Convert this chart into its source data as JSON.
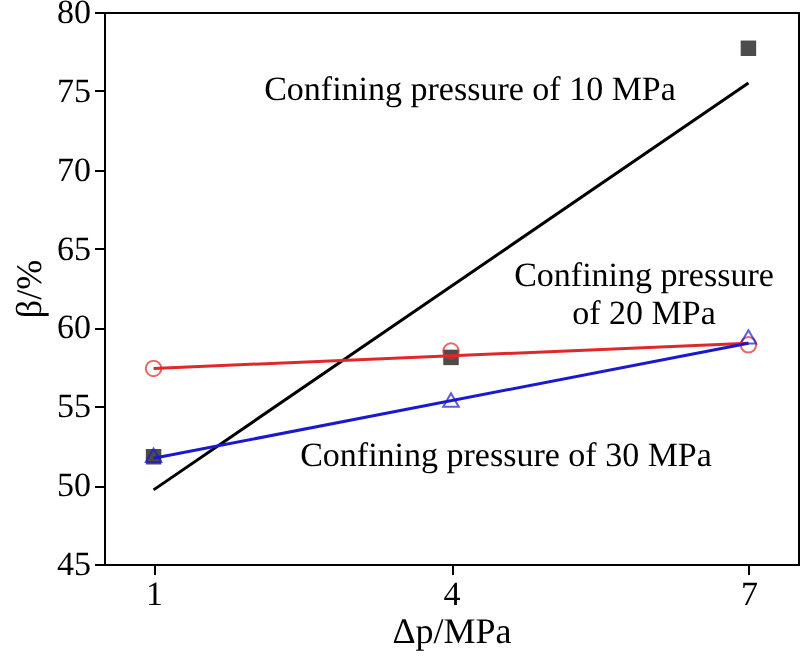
{
  "chart_data": {
    "type": "scatter",
    "xlabel": "Δp/MPa",
    "ylabel": "β/%",
    "xlim": [
      0.5,
      7.5
    ],
    "xticks": [
      1,
      4,
      7
    ],
    "ylim": [
      45,
      80
    ],
    "yticks": [
      45,
      50,
      55,
      60,
      65,
      70,
      75,
      80
    ],
    "grid": false,
    "series": [
      {
        "color": "#000000",
        "marker": "square",
        "x": [
          1,
          4,
          7
        ],
        "values": [
          51.8,
          58.1,
          77.7
        ]
      },
      {
        "color": "#e0282a",
        "marker": "circle",
        "x": [
          1,
          4,
          7
        ],
        "values": [
          57.4,
          58.5,
          58.9
        ]
      },
      {
        "color": "#1a1acc",
        "marker": "triangle",
        "x": [
          1,
          4,
          7
        ],
        "values": [
          51.9,
          55.4,
          59.4
        ]
      },
      {
        "type": "line",
        "color": "#000000",
        "x": [
          1,
          7
        ],
        "values": [
          49.7,
          75.5
        ]
      },
      {
        "type": "line",
        "color": "#e0282a",
        "x": [
          1,
          7
        ],
        "values": [
          57.4,
          59.0
        ]
      },
      {
        "type": "line",
        "color": "#1a1acc",
        "x": [
          1,
          7
        ],
        "values": [
          51.7,
          59.0
        ]
      }
    ],
    "annotations": [
      "Confining pressure of 10 MPa",
      "Confining pressure\nof 20 MPa",
      "Confining pressure of 30 MPa"
    ]
  }
}
